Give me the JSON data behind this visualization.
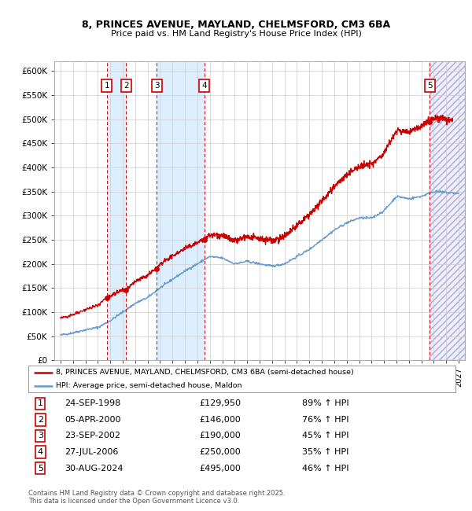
{
  "title_line1": "8, PRINCES AVENUE, MAYLAND, CHELMSFORD, CM3 6BA",
  "title_line2": "Price paid vs. HM Land Registry's House Price Index (HPI)",
  "xlim_start": 1994.5,
  "xlim_end": 2027.5,
  "ylim_min": 0,
  "ylim_max": 620000,
  "yticks": [
    0,
    50000,
    100000,
    150000,
    200000,
    250000,
    300000,
    350000,
    400000,
    450000,
    500000,
    550000,
    600000
  ],
  "ytick_labels": [
    "£0",
    "£50K",
    "£100K",
    "£150K",
    "£200K",
    "£250K",
    "£300K",
    "£350K",
    "£400K",
    "£450K",
    "£500K",
    "£550K",
    "£600K"
  ],
  "xticks": [
    1995,
    1996,
    1997,
    1998,
    1999,
    2000,
    2001,
    2002,
    2003,
    2004,
    2005,
    2006,
    2007,
    2008,
    2009,
    2010,
    2011,
    2012,
    2013,
    2014,
    2015,
    2016,
    2017,
    2018,
    2019,
    2020,
    2021,
    2022,
    2023,
    2024,
    2025,
    2026,
    2027
  ],
  "sale_dates": [
    1998.73,
    2000.27,
    2002.73,
    2006.57,
    2024.66
  ],
  "sale_prices": [
    129950,
    146000,
    190000,
    250000,
    495000
  ],
  "sale_labels": [
    "1",
    "2",
    "3",
    "4",
    "5"
  ],
  "property_color": "#cc0000",
  "hpi_color": "#6699cc",
  "shade_color": "#ddeeff",
  "hatch_color": "#c8c8d8",
  "legend_property": "8, PRINCES AVENUE, MAYLAND, CHELMSFORD, CM3 6BA (semi-detached house)",
  "legend_hpi": "HPI: Average price, semi-detached house, Maldon",
  "table_rows": [
    {
      "num": "1",
      "date": "24-SEP-1998",
      "price": "£129,950",
      "hpi": "89% ↑ HPI"
    },
    {
      "num": "2",
      "date": "05-APR-2000",
      "price": "£146,000",
      "hpi": "76% ↑ HPI"
    },
    {
      "num": "3",
      "date": "23-SEP-2002",
      "price": "£190,000",
      "hpi": "45% ↑ HPI"
    },
    {
      "num": "4",
      "date": "27-JUL-2006",
      "price": "£250,000",
      "hpi": "35% ↑ HPI"
    },
    {
      "num": "5",
      "date": "30-AUG-2024",
      "price": "£495,000",
      "hpi": "46% ↑ HPI"
    }
  ],
  "footnote": "Contains HM Land Registry data © Crown copyright and database right 2025.\nThis data is licensed under the Open Government Licence v3.0.",
  "background_color": "#ffffff",
  "grid_color": "#cccccc"
}
